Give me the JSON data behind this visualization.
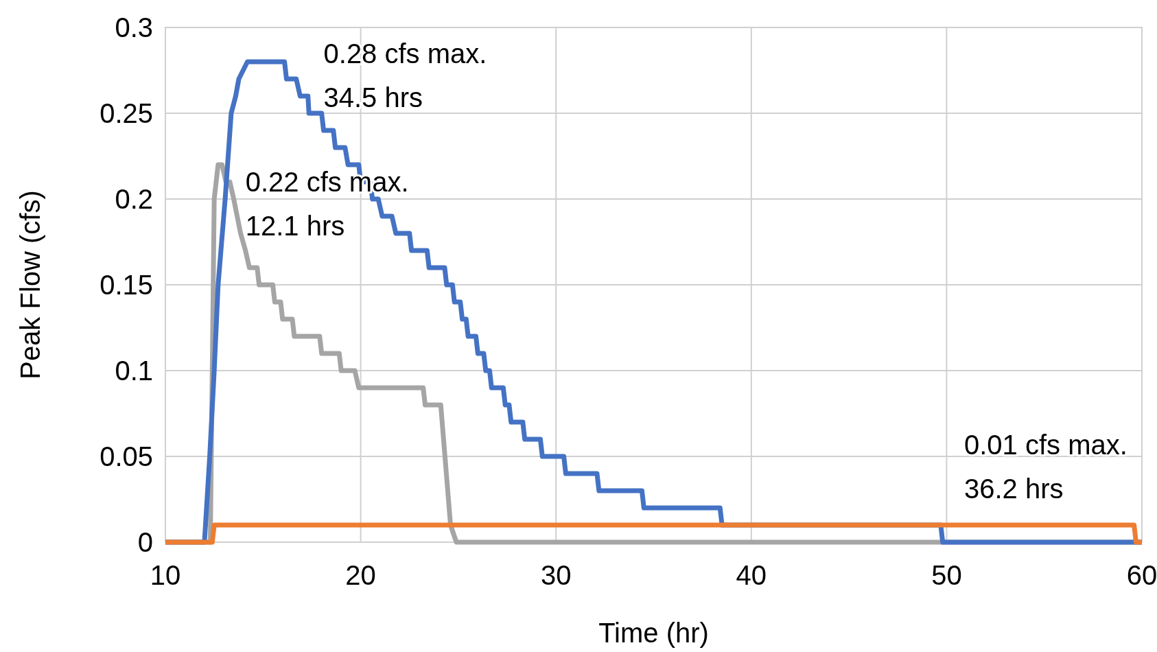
{
  "chart_data": {
    "type": "line",
    "xlabel": "Time (hr)",
    "ylabel": "Peak Flow (cfs)",
    "xlim": [
      10,
      60
    ],
    "ylim": [
      0,
      0.3
    ],
    "xticks": [
      10,
      20,
      30,
      40,
      50,
      60
    ],
    "yticks": [
      0,
      0.05,
      0.1,
      0.15,
      0.2,
      0.25,
      0.3
    ],
    "grid": true,
    "marker": "none",
    "line_style": "solid",
    "series": [
      {
        "color": "#a5a5a5",
        "x": [
          10,
          12.3,
          12.4,
          12.5,
          12.7,
          12.9,
          13.1,
          13.3,
          13.5,
          13.85,
          14.1,
          14.3,
          14.7,
          14.8,
          15.5,
          15.6,
          15.9,
          16.0,
          16.5,
          16.6,
          17.9,
          18.0,
          18.9,
          19.0,
          19.7,
          19.9,
          23.2,
          23.3,
          24.1,
          24.6,
          24.9,
          60
        ],
        "values": [
          0,
          0,
          0.1,
          0.2,
          0.22,
          0.22,
          0.21,
          0.21,
          0.2,
          0.18,
          0.17,
          0.16,
          0.16,
          0.15,
          0.15,
          0.14,
          0.14,
          0.13,
          0.13,
          0.12,
          0.12,
          0.11,
          0.11,
          0.1,
          0.1,
          0.09,
          0.09,
          0.08,
          0.08,
          0.01,
          0,
          0
        ]
      },
      {
        "color": "#4472c4",
        "x": [
          10,
          12.0,
          12.27,
          12.5,
          12.7,
          13.06,
          13.37,
          13.6,
          13.76,
          14.2,
          16.1,
          16.2,
          16.7,
          16.9,
          17.3,
          17.35,
          18.0,
          18.1,
          18.6,
          18.7,
          19.2,
          19.35,
          19.9,
          20.0,
          20.5,
          20.6,
          20.9,
          21.1,
          21.6,
          21.8,
          22.5,
          22.6,
          23.4,
          23.5,
          24.3,
          24.4,
          24.7,
          24.8,
          25.1,
          25.2,
          25.4,
          25.5,
          25.9,
          26.0,
          26.3,
          26.4,
          26.6,
          26.7,
          27.3,
          27.4,
          27.6,
          27.7,
          28.3,
          28.4,
          29.2,
          29.3,
          30.4,
          30.5,
          32.1,
          32.2,
          34.4,
          34.5,
          38.4,
          38.5,
          49.7,
          49.8,
          60
        ],
        "values": [
          0,
          0,
          0.05,
          0.1,
          0.15,
          0.2,
          0.25,
          0.26,
          0.27,
          0.28,
          0.28,
          0.27,
          0.27,
          0.26,
          0.26,
          0.25,
          0.25,
          0.24,
          0.24,
          0.23,
          0.23,
          0.22,
          0.22,
          0.21,
          0.21,
          0.2,
          0.2,
          0.19,
          0.19,
          0.18,
          0.18,
          0.17,
          0.17,
          0.16,
          0.16,
          0.15,
          0.15,
          0.14,
          0.14,
          0.13,
          0.13,
          0.12,
          0.12,
          0.11,
          0.11,
          0.1,
          0.1,
          0.09,
          0.09,
          0.08,
          0.08,
          0.07,
          0.07,
          0.06,
          0.06,
          0.05,
          0.05,
          0.04,
          0.04,
          0.03,
          0.03,
          0.02,
          0.02,
          0.01,
          0.01,
          0,
          0
        ]
      },
      {
        "color": "#ed7d31",
        "x": [
          10,
          12.4,
          12.5,
          59.6,
          59.7,
          60
        ],
        "values": [
          0,
          0,
          0.01,
          0.01,
          0,
          0
        ]
      }
    ],
    "annotations": [
      "0.28 cfs max.\n34.5 hrs",
      "0.22 cfs max.\n12.1 hrs",
      "0.01 cfs max.\n36.2 hrs"
    ]
  }
}
